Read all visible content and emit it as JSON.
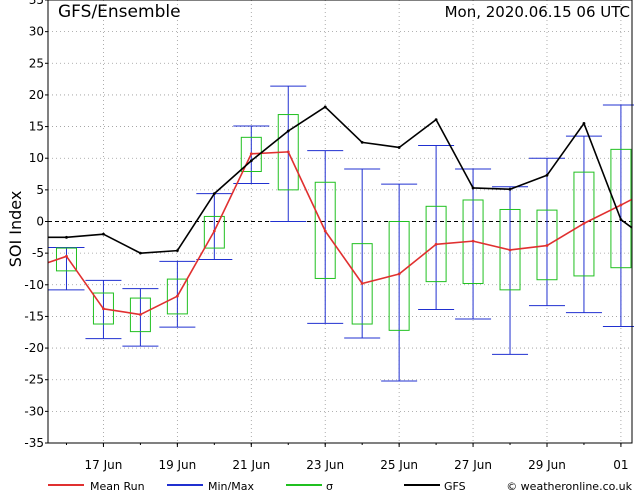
{
  "header": {
    "title": "GFS/Ensemble",
    "run_label": "Mon, 2020.06.15   06 UTC"
  },
  "footer": {
    "credit": "© weatheronline.co.uk"
  },
  "colors": {
    "mean": "#e03030",
    "minmax": "#2030d0",
    "sigma": "#20c020",
    "gfs": "#000000",
    "grid": "#999999"
  },
  "chart_data": {
    "type": "line",
    "ylabel": "SOI Index",
    "ylim": [
      -35,
      35
    ],
    "y_ticks": [
      35,
      30,
      25,
      20,
      15,
      10,
      5,
      0,
      -5,
      -10,
      -15,
      -20,
      -25,
      -30,
      -35
    ],
    "x_range": [
      15.5,
      31.3
    ],
    "x_ticks": [
      {
        "x": 17,
        "label": "17 Jun"
      },
      {
        "x": 19,
        "label": "19 Jun"
      },
      {
        "x": 21,
        "label": "21 Jun"
      },
      {
        "x": 23,
        "label": "23 Jun"
      },
      {
        "x": 25,
        "label": "25 Jun"
      },
      {
        "x": 27,
        "label": "27 Jun"
      },
      {
        "x": 29,
        "label": "29 Jun"
      },
      {
        "x": 31,
        "label": "01"
      }
    ],
    "series": [
      {
        "name": "Mean Run",
        "x": [
          15.5,
          16,
          17,
          18,
          19,
          20,
          21,
          22,
          23,
          24,
          25,
          26,
          27,
          28,
          29,
          30,
          31,
          31.3
        ],
        "values": [
          -6.5,
          -5.5,
          -13.8,
          -14.7,
          -11.8,
          -1.5,
          10.7,
          11,
          -1.5,
          -9.8,
          -8.3,
          -3.6,
          -3.1,
          -4.5,
          -3.8,
          -0.3,
          2.6,
          3.5
        ]
      },
      {
        "name": "GFS",
        "x": [
          15.5,
          16,
          17,
          18,
          19,
          20,
          21,
          22,
          23,
          24,
          25,
          26,
          27,
          28,
          29,
          30,
          31,
          31.3
        ],
        "values": [
          -2.5,
          -2.5,
          -2,
          -5,
          -4.6,
          4.4,
          9.6,
          14.3,
          18.1,
          12.5,
          11.7,
          16.1,
          5.3,
          5.1,
          7.3,
          15.5,
          0.3,
          -1
        ]
      }
    ],
    "minmax": {
      "name": "Min/Max",
      "x": [
        16,
        17,
        18,
        19,
        20,
        21,
        22,
        23,
        24,
        25,
        26,
        27,
        28,
        29,
        30,
        31
      ],
      "min": [
        -10.8,
        -18.5,
        -19.7,
        -16.7,
        -6,
        6,
        0,
        -16.1,
        -18.4,
        -25.2,
        -13.9,
        -15.4,
        -21,
        -13.3,
        -14.4,
        -16.6
      ],
      "max": [
        -4.1,
        -9.3,
        -10.6,
        -6.3,
        4.4,
        15.1,
        21.4,
        11.2,
        8.3,
        5.9,
        12,
        8.3,
        5.5,
        10,
        13.5,
        18.4
      ]
    },
    "sigma": {
      "name": "σ",
      "x": [
        16,
        17,
        18,
        19,
        20,
        21,
        22,
        23,
        24,
        25,
        26,
        27,
        28,
        29,
        30,
        31
      ],
      "low": [
        -7.8,
        -16.2,
        -17.4,
        -14.6,
        -4.2,
        7.9,
        5,
        -9,
        -16.2,
        -17.2,
        -9.5,
        -9.8,
        -10.8,
        -9.2,
        -8.6,
        -7.3
      ],
      "high": [
        -4.2,
        -11.3,
        -12.1,
        -9.1,
        0.8,
        13.3,
        16.9,
        6.2,
        -3.5,
        0,
        2.4,
        3.4,
        1.9,
        1.8,
        7.8,
        11.4
      ]
    },
    "legend": [
      {
        "name": "Mean Run",
        "color": "#e03030"
      },
      {
        "name": "Min/Max",
        "color": "#2030d0"
      },
      {
        "name": "σ",
        "color": "#20c020"
      },
      {
        "name": "GFS",
        "color": "#000000"
      }
    ],
    "legend_placement": "bottom",
    "grid": true
  }
}
